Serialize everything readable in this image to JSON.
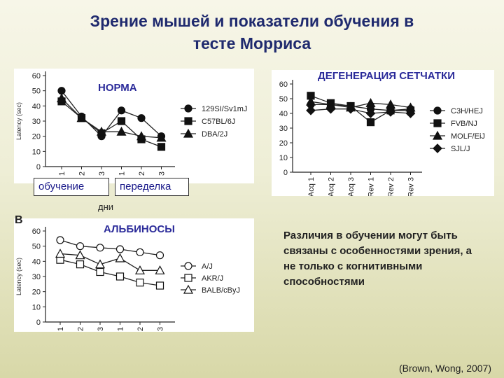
{
  "title_line1": "Зрение мышей и показатели обучения в",
  "title_line2": "тесте Морриса",
  "labels": {
    "learning": "обучение",
    "relearning": "переделка",
    "days": "дни",
    "panel_b": "B"
  },
  "note": "Различия в обучении могут быть связаны с особенностями зрения, а не только с когнитивными способностями",
  "citation": "(Brown, Wong, 2007)",
  "chart_data": [
    {
      "type": "line",
      "title": "НОРМА",
      "ylabel": "Latency (sec)",
      "ylim": [
        0,
        60
      ],
      "yticks": [
        0,
        10,
        20,
        30,
        40,
        50,
        60
      ],
      "x": [
        "1",
        "2",
        "3",
        "1",
        "2",
        "3"
      ],
      "title_color": "#2b2b9a",
      "series": [
        {
          "name": "129SI/Sv1mJ",
          "marker": "circle",
          "fill": "#111111",
          "values": [
            50,
            33,
            20,
            37,
            32,
            20
          ]
        },
        {
          "name": "C57BL/6J",
          "marker": "square",
          "fill": "#111111",
          "values": [
            43,
            32,
            22,
            30,
            18,
            13
          ]
        },
        {
          "name": "DBA/2J",
          "marker": "triangle",
          "fill": "#111111",
          "values": [
            45,
            32,
            23,
            23,
            20,
            19
          ]
        }
      ]
    },
    {
      "type": "line",
      "title": "ДЕГЕНЕРАЦИЯ СЕТЧАТКИ",
      "ylim": [
        0,
        60
      ],
      "yticks": [
        0,
        10,
        20,
        30,
        40,
        50,
        60
      ],
      "x": [
        "Acq 1",
        "Acq 2",
        "Acq 3",
        "Rev 1",
        "Rev 2",
        "Rev 3"
      ],
      "title_color": "#2b2b9a",
      "series": [
        {
          "name": "C3H/HEJ",
          "marker": "circle",
          "fill": "#111111",
          "values": [
            46,
            46,
            45,
            43,
            42,
            43
          ]
        },
        {
          "name": "FVB/NJ",
          "marker": "square",
          "fill": "#111111",
          "values": [
            52,
            47,
            45,
            34,
            42,
            42
          ]
        },
        {
          "name": "MOLF/EiJ",
          "marker": "triangle",
          "fill": "#111111",
          "values": [
            48,
            46,
            44,
            47,
            46,
            44
          ]
        },
        {
          "name": "SJL/J",
          "marker": "diamond",
          "fill": "#111111",
          "values": [
            42,
            43,
            43,
            40,
            41,
            40
          ]
        }
      ]
    },
    {
      "type": "line",
      "title": "АЛЬБИНОСЫ",
      "ylabel": "Latency (sec)",
      "ylim": [
        0,
        60
      ],
      "yticks": [
        0,
        10,
        20,
        30,
        40,
        50,
        60
      ],
      "x": [
        "1",
        "2",
        "3",
        "1",
        "2",
        "3"
      ],
      "title_color": "#2b2b9a",
      "series": [
        {
          "name": "A/J",
          "marker": "circle",
          "fill": "#ffffff",
          "values": [
            54,
            50,
            49,
            48,
            46,
            44
          ]
        },
        {
          "name": "AKR/J",
          "marker": "square",
          "fill": "#ffffff",
          "values": [
            41,
            38,
            33,
            30,
            26,
            24
          ]
        },
        {
          "name": "BALB/cByJ",
          "marker": "triangle",
          "fill": "#ffffff",
          "values": [
            45,
            44,
            38,
            42,
            34,
            34
          ]
        }
      ]
    }
  ]
}
